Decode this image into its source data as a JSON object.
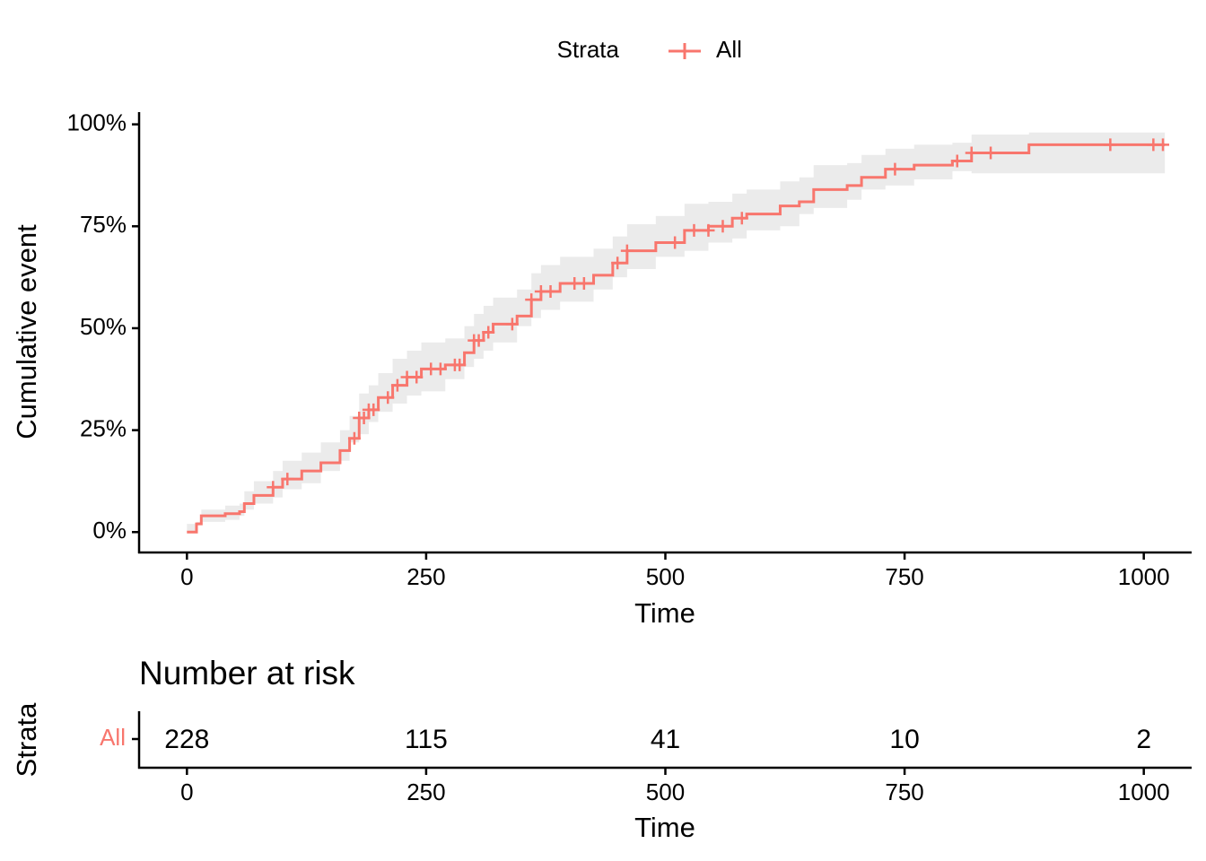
{
  "chart_data": [
    {
      "type": "step",
      "legend_title": "Strata",
      "xlabel": "Time",
      "ylabel": "Cumulative event",
      "xlim": [
        -50,
        1050
      ],
      "ylim": [
        -5,
        103
      ],
      "xticks": [
        0,
        250,
        500,
        750,
        1000
      ],
      "yticks": [
        {
          "value": 0,
          "label": "0%"
        },
        {
          "value": 25,
          "label": "25%"
        },
        {
          "value": 50,
          "label": "50%"
        },
        {
          "value": 75,
          "label": "75%"
        },
        {
          "value": 100,
          "label": "100%"
        }
      ],
      "band_color": "#ebebeb",
      "series": [
        {
          "name": "All",
          "color": "#f8766d",
          "x": [
            0,
            10,
            15,
            40,
            55,
            60,
            70,
            90,
            100,
            120,
            140,
            160,
            170,
            180,
            190,
            200,
            215,
            230,
            245,
            270,
            290,
            300,
            310,
            320,
            345,
            360,
            370,
            390,
            425,
            445,
            460,
            490,
            520,
            545,
            570,
            585,
            620,
            640,
            655,
            690,
            705,
            730,
            760,
            800,
            820,
            880,
            1022
          ],
          "values": [
            0,
            2,
            4,
            4.5,
            5,
            7,
            9,
            11,
            13,
            15,
            17,
            20,
            23,
            28,
            30,
            33,
            36,
            38,
            40,
            41,
            44,
            47,
            49,
            51,
            53,
            57,
            59,
            61,
            63,
            66,
            69,
            71,
            74,
            75,
            77,
            78,
            80,
            81,
            84,
            85,
            87,
            89,
            90,
            91,
            93,
            95,
            95
          ],
          "lower": [
            0,
            2,
            2.5,
            2.5,
            3,
            4,
            5.5,
            7,
            8.5,
            10.5,
            12,
            15,
            17.5,
            22,
            24,
            27,
            29.5,
            31.5,
            33.5,
            34.5,
            37.5,
            40.5,
            42.5,
            44.5,
            46.5,
            50.5,
            52.5,
            54.5,
            56.5,
            59.5,
            62.5,
            64.5,
            67.5,
            69,
            71,
            72,
            74,
            75,
            78,
            79.5,
            81.5,
            84,
            85,
            86.5,
            88.5,
            88,
            88
          ],
          "upper": [
            0,
            2,
            5.5,
            6.5,
            7,
            10,
            12.5,
            15,
            17.5,
            19.5,
            22,
            25,
            28.5,
            34,
            36,
            39,
            42.5,
            44.5,
            46.5,
            47.5,
            50.5,
            53.5,
            55.5,
            57.5,
            59.5,
            63.5,
            65.5,
            67.5,
            69.5,
            72.5,
            75.5,
            77.5,
            80.5,
            81,
            83,
            84,
            86,
            87,
            90,
            90.5,
            92.5,
            94,
            95,
            95.5,
            97.5,
            98,
            98
          ],
          "censor_x": [
            90,
            105,
            175,
            180,
            185,
            190,
            195,
            210,
            220,
            230,
            240,
            255,
            265,
            280,
            285,
            300,
            305,
            315,
            340,
            360,
            370,
            380,
            405,
            415,
            450,
            460,
            510,
            530,
            545,
            560,
            580,
            740,
            805,
            820,
            840,
            965,
            1010,
            1020
          ],
          "censor_values": [
            11,
            13,
            23,
            28,
            28,
            30,
            30,
            33,
            36,
            38,
            38,
            40,
            40,
            41,
            41,
            47,
            47,
            49,
            51,
            57,
            59,
            59,
            61,
            61,
            66,
            69,
            71,
            74,
            74,
            75,
            77,
            89,
            91,
            93,
            93,
            95,
            95,
            95
          ]
        }
      ]
    },
    {
      "type": "risk_table",
      "title": "Number at risk",
      "xlabel": "Time",
      "ylabel": "Strata",
      "xlim": [
        -50,
        1050
      ],
      "xticks": [
        0,
        250,
        500,
        750,
        1000
      ],
      "x": [
        0,
        250,
        500,
        750,
        1000
      ],
      "series": [
        {
          "name": "All",
          "color": "#f8766d",
          "values": [
            228,
            115,
            41,
            10,
            2
          ]
        }
      ]
    }
  ]
}
